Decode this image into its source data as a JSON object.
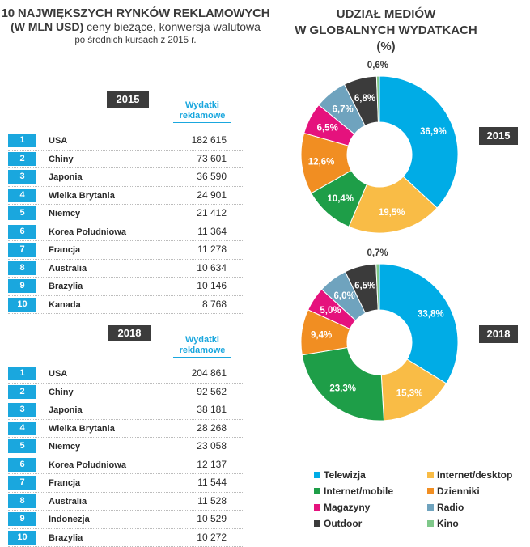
{
  "left_title": {
    "line1": "10 NAJWIĘKSZYCH RYNKÓW REKLAMOWYCH",
    "line2_bold": "(W MLN USD)",
    "line2_rest": " ceny bieżące, konwersja  walutowa",
    "line3": "po średnich kursach  z 2015 r."
  },
  "table_2015": {
    "year": "2015",
    "column_header": [
      "Wydatki",
      "reklamowe"
    ],
    "rows": [
      {
        "rank": "1",
        "country": "USA",
        "value": "182 615"
      },
      {
        "rank": "2",
        "country": "Chiny",
        "value": "73 601"
      },
      {
        "rank": "3",
        "country": "Japonia",
        "value": "36 590"
      },
      {
        "rank": "4",
        "country": "Wielka Brytania",
        "value": "24 901"
      },
      {
        "rank": "5",
        "country": "Niemcy",
        "value": "21 412"
      },
      {
        "rank": "6",
        "country": "Korea Południowa",
        "value": "11 364"
      },
      {
        "rank": "7",
        "country": "Francja",
        "value": "11 278"
      },
      {
        "rank": "8",
        "country": "Australia",
        "value": "10 634"
      },
      {
        "rank": "9",
        "country": "Brazylia",
        "value": "10 146"
      },
      {
        "rank": "10",
        "country": "Kanada",
        "value": "8 768"
      }
    ]
  },
  "table_2018": {
    "year": "2018",
    "column_header": [
      "Wydatki",
      "reklamowe"
    ],
    "rows": [
      {
        "rank": "1",
        "country": "USA",
        "value": "204 861"
      },
      {
        "rank": "2",
        "country": "Chiny",
        "value": "92 562"
      },
      {
        "rank": "3",
        "country": "Japonia",
        "value": "38 181"
      },
      {
        "rank": "4",
        "country": "Wielka Brytania",
        "value": "28 268"
      },
      {
        "rank": "5",
        "country": "Niemcy",
        "value": "23 058"
      },
      {
        "rank": "6",
        "country": "Korea Południowa",
        "value": "12 137"
      },
      {
        "rank": "7",
        "country": "Francja",
        "value": "11 544"
      },
      {
        "rank": "8",
        "country": "Australia",
        "value": "11 528"
      },
      {
        "rank": "9",
        "country": "Indonezja",
        "value": "10 529"
      },
      {
        "rank": "10",
        "country": "Brazylia",
        "value": "10 272"
      }
    ]
  },
  "right_title": {
    "line1": "UDZIAŁ MEDIÓW",
    "line2": "W GLOBALNYCH WYDATKACH (%)"
  },
  "chart_data": [
    {
      "type": "pie",
      "donut": true,
      "title": "2015",
      "unit": "%",
      "categories": [
        "Telewizja",
        "Internet/desktop",
        "Internet/mobile",
        "Dzienniki",
        "Magazyny",
        "Radio",
        "Outdoor",
        "Kino"
      ],
      "values": [
        36.9,
        19.5,
        10.4,
        12.6,
        6.5,
        6.7,
        6.8,
        0.6
      ],
      "labels": [
        "36,9%",
        "19,5%",
        "10,4%",
        "12,6%",
        "6,5%",
        "6,7%",
        "6,8%",
        "0,6%"
      ],
      "colors": [
        "#00ACE6",
        "#F9BC46",
        "#1E9E48",
        "#F18E22",
        "#E5127D",
        "#6FA3BE",
        "#3B3B3B",
        "#7FC88A"
      ]
    },
    {
      "type": "pie",
      "donut": true,
      "title": "2018",
      "unit": "%",
      "categories": [
        "Telewizja",
        "Internet/desktop",
        "Internet/mobile",
        "Dzienniki",
        "Magazyny",
        "Radio",
        "Outdoor",
        "Kino"
      ],
      "values": [
        33.8,
        15.3,
        23.3,
        9.4,
        5.0,
        6.0,
        6.5,
        0.7
      ],
      "labels": [
        "33,8%",
        "15,3%",
        "23,3%",
        "9,4%",
        "5,0%",
        "6,0%",
        "6,5%",
        "0,7%"
      ],
      "colors": [
        "#00ACE6",
        "#F9BC46",
        "#1E9E48",
        "#F18E22",
        "#E5127D",
        "#6FA3BE",
        "#3B3B3B",
        "#7FC88A"
      ]
    }
  ],
  "legend": [
    {
      "label": "Telewizja",
      "color": "#00ACE6"
    },
    {
      "label": "Internet/desktop",
      "color": "#F9BC46"
    },
    {
      "label": "Internet/mobile",
      "color": "#1E9E48"
    },
    {
      "label": "Dzienniki",
      "color": "#F18E22"
    },
    {
      "label": "Magazyny",
      "color": "#E5127D"
    },
    {
      "label": "Radio",
      "color": "#6FA3BE"
    },
    {
      "label": "Outdoor",
      "color": "#3B3B3B"
    },
    {
      "label": "Kino",
      "color": "#7FC88A"
    }
  ]
}
